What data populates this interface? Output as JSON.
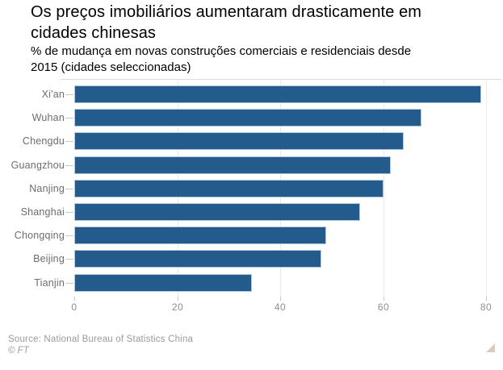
{
  "header": {
    "title_lines": [
      "Os preços imobiliários aumentaram drasticamente em",
      "cidades chinesas"
    ],
    "subtitle_lines": [
      "% de mudança em novas construções comerciais e residenciais desde",
      "2015 (cidades seleccionadas)"
    ]
  },
  "chart_data": {
    "type": "bar",
    "orientation": "horizontal",
    "title": "Os preços imobiliários aumentaram drasticamente em cidades chinesas",
    "subtitle": "% de mudança em novas construções comerciais e residenciais desde 2015 (cidades seleccionadas)",
    "categories": [
      "Xi'an",
      "Wuhan",
      "Chengdu",
      "Guangzhou",
      "Nanjing",
      "Shanghai",
      "Chongqing",
      "Beijing",
      "Tianjin"
    ],
    "values": [
      79,
      67.5,
      64,
      61.5,
      60,
      55.5,
      49,
      48,
      34.5
    ],
    "xlabel": "",
    "ylabel": "",
    "xlim": [
      0,
      83
    ],
    "xticks": [
      0,
      20,
      40,
      60,
      80
    ],
    "grid": "vertical-light",
    "legend": "none",
    "bar_color": "#235c8c",
    "bar_outline_color": "#b3c9da"
  },
  "footer": {
    "source": "Source: National Bureau of Statistics China",
    "copyright": "© FT"
  }
}
